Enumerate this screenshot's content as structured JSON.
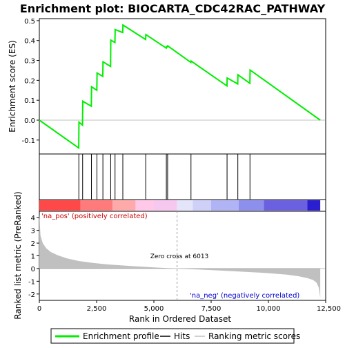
{
  "chart_data": {
    "type": "line",
    "title": "Enrichment plot: BIOCARTA_CDC42RAC_PATHWAY",
    "xlabel": "Rank in Ordered Dataset",
    "ylabel_top": "Enrichment score (ES)",
    "ylabel_bottom": "Ranked list metric (PreRanked)",
    "x_range": [
      0,
      12500
    ],
    "x_ticks": [
      0,
      2500,
      5000,
      7500,
      10000,
      12500
    ],
    "x_tick_labels": [
      "0",
      "2,500",
      "5,000",
      "7,500",
      "10,000",
      "12,500"
    ],
    "es_range": [
      -0.17,
      0.51
    ],
    "es_ticks": [
      -0.1,
      0.0,
      0.1,
      0.2,
      0.3,
      0.4,
      0.5
    ],
    "es_tick_labels": [
      "-0.1",
      "0.0",
      "0.1",
      "0.2",
      "0.3",
      "0.4",
      "0.5"
    ],
    "metric_range": [
      -2.5,
      4.5
    ],
    "metric_ticks": [
      -2,
      -1,
      0,
      1,
      2,
      3,
      4
    ],
    "metric_tick_labels": [
      "-2",
      "-1",
      "0",
      "1",
      "2",
      "3",
      "4"
    ],
    "total_genes": 12263,
    "es_profile": {
      "x": [
        0,
        1720,
        1730,
        1885,
        1895,
        2270,
        2280,
        2510,
        2520,
        2770,
        2780,
        3110,
        3120,
        3300,
        3310,
        3640,
        3650,
        4640,
        4650,
        5540,
        5550,
        5595,
        5605,
        6615,
        6625,
        8190,
        8200,
        8660,
        8670,
        9190,
        9200,
        12263
      ],
      "y": [
        0.0,
        -0.14,
        -0.01,
        -0.025,
        0.095,
        0.07,
        0.168,
        0.15,
        0.237,
        0.22,
        0.293,
        0.27,
        0.402,
        0.39,
        0.455,
        0.44,
        0.478,
        0.405,
        0.43,
        0.362,
        0.37,
        0.368,
        0.373,
        0.29,
        0.297,
        0.172,
        0.212,
        0.182,
        0.228,
        0.185,
        0.252,
        0.0
      ]
    },
    "hits": [
      1725,
      1890,
      2275,
      2515,
      2775,
      3115,
      3305,
      3645,
      4645,
      5545,
      5600,
      6620,
      8195,
      8665,
      9195
    ],
    "metric_curve": {
      "x": [
        0,
        50,
        150,
        300,
        500,
        800,
        1200,
        1700,
        2300,
        3000,
        4000,
        5000,
        6013,
        7000,
        8000,
        9000,
        10000,
        10800,
        11300,
        11700,
        11950,
        12100,
        12200,
        12263
      ],
      "y": [
        4.3,
        2.6,
        2.0,
        1.6,
        1.3,
        1.05,
        0.8,
        0.6,
        0.45,
        0.32,
        0.2,
        0.09,
        0.0,
        -0.08,
        -0.17,
        -0.26,
        -0.36,
        -0.48,
        -0.6,
        -0.75,
        -0.9,
        -1.1,
        -1.5,
        -2.3
      ]
    },
    "zero_cross": 6013,
    "zero_cross_label": "Zero cross at 6013",
    "pos_label": "'na_pos' (positively correlated)",
    "neg_label": "'na_neg' (negatively correlated)",
    "heat_bar": [
      {
        "from": 0,
        "to": 1800,
        "color": "#ff4848"
      },
      {
        "from": 1800,
        "to": 3200,
        "color": "#ff7b7b"
      },
      {
        "from": 3200,
        "to": 4200,
        "color": "#ffaaaa"
      },
      {
        "from": 4200,
        "to": 5000,
        "color": "#ffc8e8"
      },
      {
        "from": 5000,
        "to": 6013,
        "color": "#f6c8f0"
      },
      {
        "from": 6013,
        "to": 6700,
        "color": "#e4e4fa"
      },
      {
        "from": 6700,
        "to": 7500,
        "color": "#cfd0f8"
      },
      {
        "from": 7500,
        "to": 8700,
        "color": "#b0b3f4"
      },
      {
        "from": 8700,
        "to": 9800,
        "color": "#8c90ec"
      },
      {
        "from": 9800,
        "to": 11700,
        "color": "#6a60e0"
      },
      {
        "from": 11700,
        "to": 12263,
        "color": "#2b1ed0"
      }
    ],
    "legend": [
      {
        "label": "Enrichment profile",
        "color": "#00ee00"
      },
      {
        "label": "Hits",
        "color": "#000000"
      },
      {
        "label": "Ranking metric scores",
        "color": "#c0c0c0"
      }
    ],
    "colors": {
      "profile": "#00ee00",
      "hits": "#000000",
      "metric": "#c0c0c0",
      "pos_text": "#cc0000",
      "neg_text": "#0000cc"
    }
  }
}
